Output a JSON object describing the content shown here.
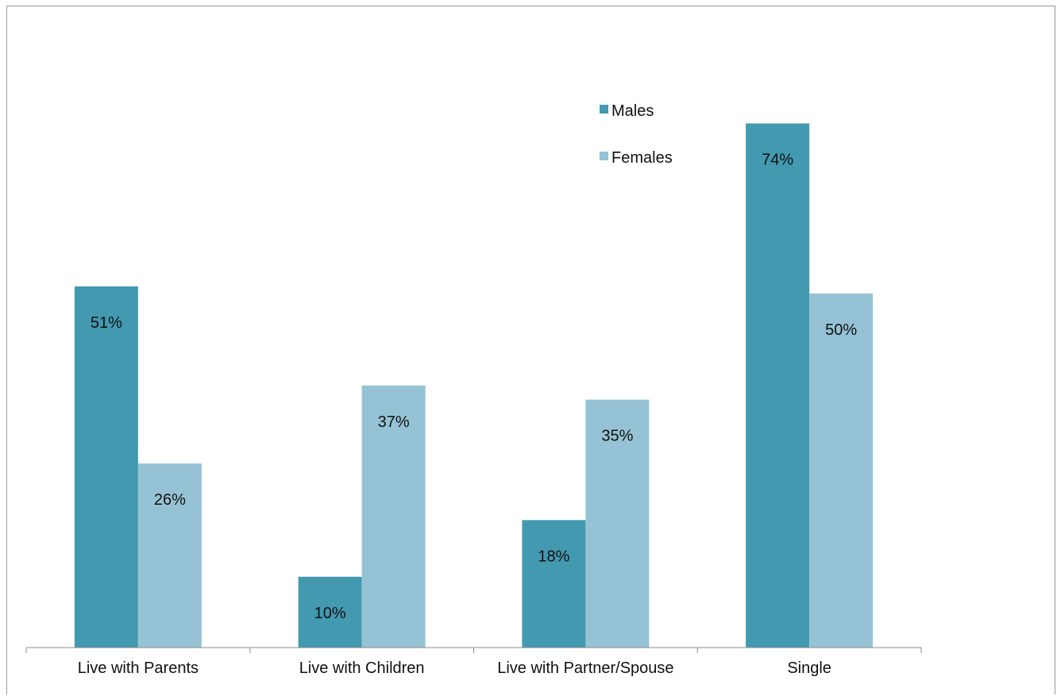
{
  "chart_data": {
    "type": "bar",
    "categories": [
      "Live with Parents",
      "Live with Children",
      "Live with Partner/Spouse",
      "Single"
    ],
    "series": [
      {
        "name": "Males",
        "values": [
          51,
          10,
          18,
          74
        ],
        "labels": [
          "51%",
          "10%",
          "18%",
          "74%"
        ],
        "color": "#4299b0"
      },
      {
        "name": "Females",
        "values": [
          26,
          37,
          35,
          50
        ],
        "labels": [
          "26%",
          "37%",
          "35%",
          "50%"
        ],
        "color": "#95c3d5"
      }
    ],
    "ylim": [
      0,
      80
    ],
    "grid": false,
    "legend_position": "top-right"
  }
}
